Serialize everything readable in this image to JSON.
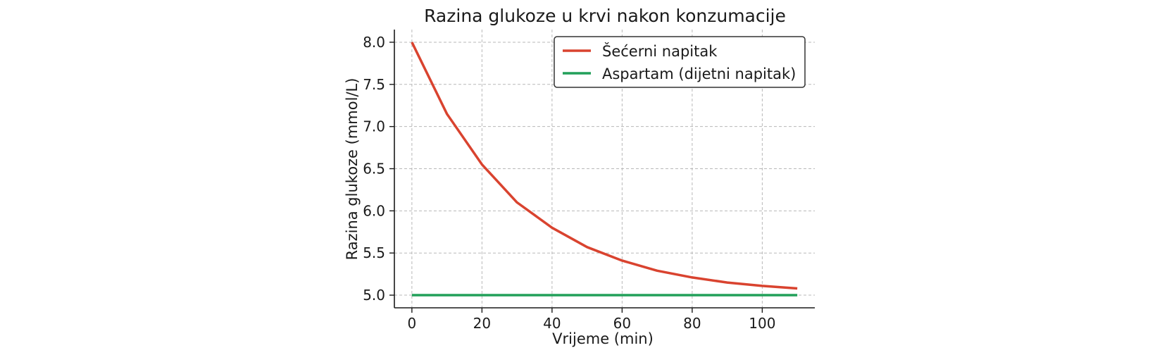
{
  "chart_data": {
    "type": "line",
    "title": "Razina glukoze u krvi nakon konzumacije",
    "xlabel": "Vrijeme (min)",
    "ylabel": "Razina glukoze (mmol/L)",
    "xlim": [
      -5,
      115
    ],
    "ylim": [
      4.85,
      8.15
    ],
    "xticks": [
      0,
      20,
      40,
      60,
      80,
      100
    ],
    "yticks": [
      5.0,
      5.5,
      6.0,
      6.5,
      7.0,
      7.5,
      8.0
    ],
    "xtick_labels": [
      "0",
      "20",
      "40",
      "60",
      "80",
      "100"
    ],
    "ytick_labels": [
      "5.0",
      "5.5",
      "6.0",
      "6.5",
      "7.0",
      "7.5",
      "8.0"
    ],
    "grid": true,
    "legend_position": "top-right",
    "x": [
      0,
      10,
      20,
      30,
      40,
      50,
      60,
      70,
      80,
      90,
      100,
      110
    ],
    "series": [
      {
        "name": "Šećerni napitak",
        "color": "#d9432f",
        "values": [
          8.0,
          7.15,
          6.55,
          6.1,
          5.8,
          5.57,
          5.41,
          5.29,
          5.21,
          5.15,
          5.11,
          5.08
        ]
      },
      {
        "name": "Aspartam (dijetni napitak)",
        "color": "#22a05a",
        "values": [
          5.0,
          5.0,
          5.0,
          5.0,
          5.0,
          5.0,
          5.0,
          5.0,
          5.0,
          5.0,
          5.0,
          5.0
        ]
      }
    ]
  }
}
